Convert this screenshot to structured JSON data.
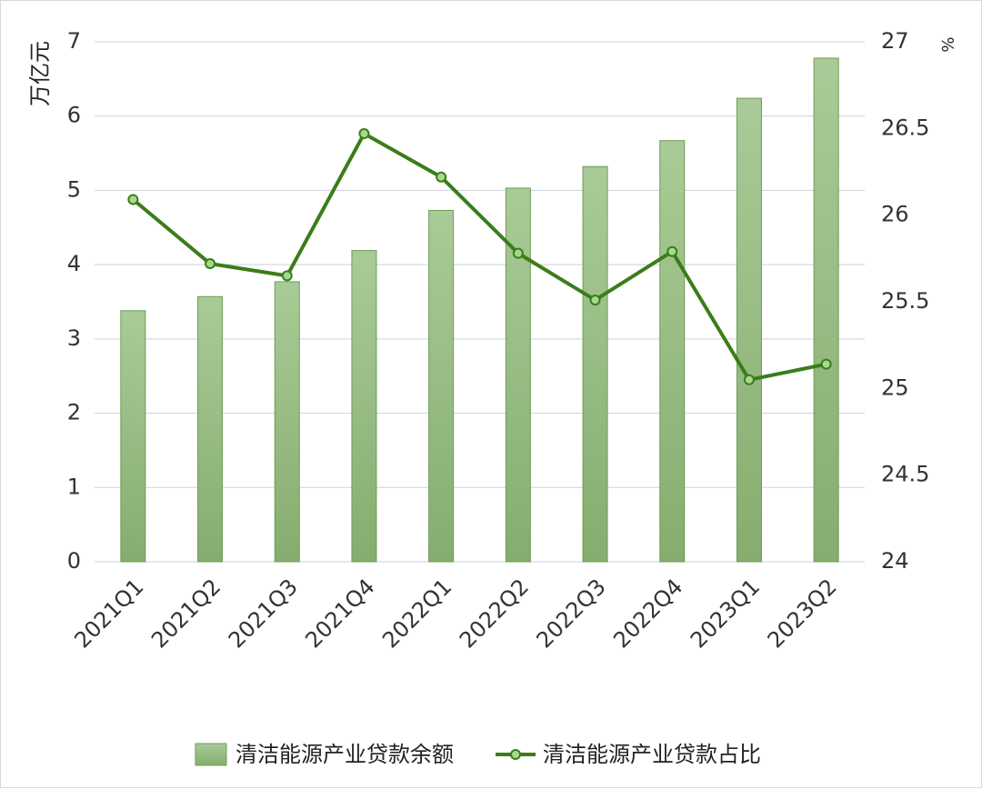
{
  "chart_data": {
    "type": "bar+line",
    "categories": [
      "2021Q1",
      "2021Q2",
      "2021Q3",
      "2021Q4",
      "2022Q1",
      "2022Q2",
      "2022Q3",
      "2022Q4",
      "2023Q1",
      "2023Q2"
    ],
    "series": [
      {
        "name": "清洁能源产业贷款余额",
        "type": "bar",
        "axis": "left",
        "values": [
          3.38,
          3.57,
          3.77,
          4.19,
          4.73,
          5.03,
          5.32,
          5.67,
          6.24,
          6.78
        ]
      },
      {
        "name": "清洁能源产业贷款占比",
        "type": "line",
        "axis": "right",
        "values": [
          26.09,
          25.72,
          25.65,
          26.47,
          26.22,
          25.78,
          25.51,
          25.79,
          25.05,
          25.14
        ]
      }
    ],
    "left_axis": {
      "label": "万亿元",
      "ylim": [
        0,
        7
      ],
      "ticks": [
        "0",
        "1",
        "2",
        "3",
        "4",
        "5",
        "6",
        "7"
      ]
    },
    "right_axis": {
      "label": "%",
      "ylim": [
        24,
        27
      ],
      "ticks": [
        "24",
        "24.5",
        "25",
        "25.5",
        "26",
        "26.5",
        "27"
      ]
    },
    "grid": true,
    "legend_position": "bottom",
    "colors": {
      "bar_top": "#a9cb97",
      "bar_bottom": "#86ad6f",
      "bar_edge": "#6f9c57",
      "line": "#3a7d1a",
      "marker_fill": "#a6d98c",
      "grid": "#c9d3dc"
    }
  }
}
